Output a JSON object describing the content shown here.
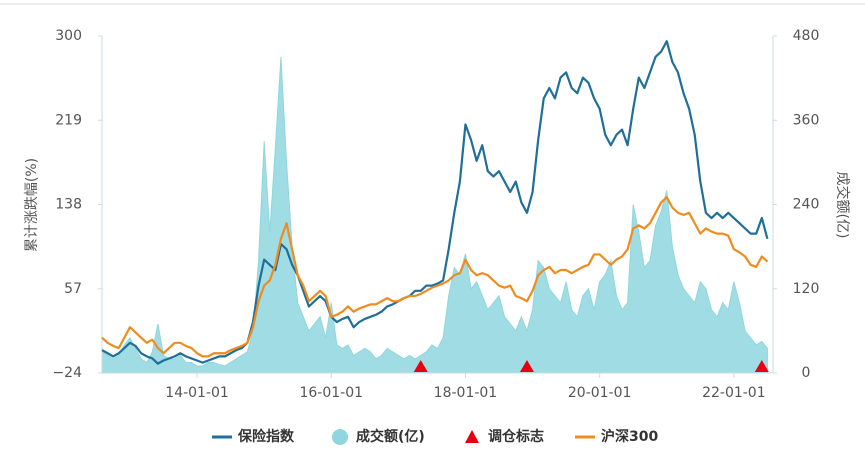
{
  "chart_data": {
    "type": "line",
    "y_label": "累计涨跌幅(%)",
    "y2_label": "成交额(亿)",
    "ylim": [
      -24,
      300
    ],
    "yticks": [
      {
        "value": -24,
        "label": "−24"
      },
      57,
      138,
      219,
      300
    ],
    "y2lim": [
      0,
      480
    ],
    "y2ticks": [
      0,
      120,
      240,
      360,
      480
    ],
    "xlim": [
      "12-08-01",
      "22-08-01"
    ],
    "xticks": [
      "14-01-01",
      "16-01-01",
      "18-01-01",
      "20-01-01",
      "22-01-01"
    ],
    "x": [
      "12-08-01",
      "12-09-01",
      "12-10-01",
      "12-11-01",
      "12-12-01",
      "13-01-01",
      "13-02-01",
      "13-03-01",
      "13-04-01",
      "13-05-01",
      "13-06-01",
      "13-07-01",
      "13-08-01",
      "13-09-01",
      "13-10-01",
      "13-11-01",
      "13-12-01",
      "14-01-01",
      "14-02-01",
      "14-03-01",
      "14-04-01",
      "14-05-01",
      "14-06-01",
      "14-07-01",
      "14-08-01",
      "14-09-01",
      "14-10-01",
      "14-11-01",
      "14-12-01",
      "15-01-01",
      "15-02-01",
      "15-03-01",
      "15-04-01",
      "15-05-01",
      "15-06-01",
      "15-07-01",
      "15-08-01",
      "15-09-01",
      "15-10-01",
      "15-11-01",
      "15-12-01",
      "16-01-01",
      "16-02-01",
      "16-03-01",
      "16-04-01",
      "16-05-01",
      "16-06-01",
      "16-07-01",
      "16-08-01",
      "16-09-01",
      "16-10-01",
      "16-11-01",
      "16-12-01",
      "17-01-01",
      "17-02-01",
      "17-03-01",
      "17-04-01",
      "17-05-01",
      "17-06-01",
      "17-07-01",
      "17-08-01",
      "17-09-01",
      "17-10-01",
      "17-11-01",
      "17-12-01",
      "18-01-01",
      "18-02-01",
      "18-03-01",
      "18-04-01",
      "18-05-01",
      "18-06-01",
      "18-07-01",
      "18-08-01",
      "18-09-01",
      "18-10-01",
      "18-11-01",
      "18-12-01",
      "19-01-01",
      "19-02-01",
      "19-03-01",
      "19-04-01",
      "19-05-01",
      "19-06-01",
      "19-07-01",
      "19-08-01",
      "19-09-01",
      "19-10-01",
      "19-11-01",
      "19-12-01",
      "20-01-01",
      "20-02-01",
      "20-03-01",
      "20-04-01",
      "20-05-01",
      "20-06-01",
      "20-07-01",
      "20-08-01",
      "20-09-01",
      "20-10-01",
      "20-11-01",
      "20-12-01",
      "21-01-01",
      "21-02-01",
      "21-03-01",
      "21-04-01",
      "21-05-01",
      "21-06-01",
      "21-07-01",
      "21-08-01",
      "21-09-01",
      "21-10-01",
      "21-11-01",
      "21-12-01",
      "22-01-01",
      "22-02-01",
      "22-03-01",
      "22-04-01",
      "22-05-01",
      "22-06-01",
      "22-07-01"
    ],
    "series": [
      {
        "name": "保险指数",
        "type": "line",
        "color": "#1f6f99",
        "values": [
          -2,
          -5,
          -8,
          -5,
          0,
          5,
          2,
          -5,
          -8,
          -10,
          -15,
          -12,
          -10,
          -8,
          -5,
          -8,
          -10,
          -12,
          -14,
          -12,
          -10,
          -8,
          -8,
          -5,
          -2,
          0,
          5,
          25,
          60,
          85,
          80,
          75,
          100,
          95,
          80,
          70,
          55,
          40,
          45,
          50,
          45,
          30,
          25,
          28,
          30,
          20,
          25,
          28,
          30,
          32,
          35,
          40,
          42,
          45,
          48,
          50,
          55,
          55,
          60,
          60,
          62,
          65,
          95,
          130,
          160,
          215,
          200,
          180,
          195,
          170,
          165,
          170,
          160,
          150,
          160,
          140,
          130,
          150,
          200,
          240,
          250,
          240,
          260,
          265,
          250,
          245,
          260,
          255,
          240,
          230,
          205,
          195,
          205,
          210,
          195,
          230,
          260,
          250,
          265,
          280,
          285,
          295,
          275,
          265,
          245,
          230,
          205,
          160,
          130,
          125,
          130,
          125,
          130,
          125,
          120,
          115,
          110,
          110,
          125,
          105
        ]
      },
      {
        "name": "成交额(亿)",
        "type": "area",
        "axis": "y2",
        "color": "#8fd6de",
        "values": [
          30,
          25,
          20,
          25,
          40,
          50,
          35,
          20,
          15,
          30,
          70,
          25,
          20,
          20,
          25,
          15,
          15,
          10,
          10,
          15,
          15,
          12,
          10,
          15,
          20,
          25,
          30,
          60,
          160,
          330,
          200,
          320,
          450,
          300,
          180,
          100,
          80,
          60,
          70,
          80,
          50,
          100,
          40,
          35,
          40,
          25,
          30,
          35,
          30,
          20,
          25,
          35,
          30,
          25,
          20,
          25,
          20,
          25,
          30,
          40,
          35,
          50,
          110,
          150,
          140,
          170,
          120,
          130,
          110,
          90,
          100,
          110,
          80,
          70,
          60,
          80,
          60,
          90,
          160,
          150,
          120,
          110,
          100,
          130,
          90,
          80,
          110,
          120,
          90,
          130,
          140,
          160,
          110,
          90,
          100,
          240,
          200,
          150,
          160,
          210,
          230,
          260,
          180,
          140,
          120,
          110,
          100,
          130,
          120,
          90,
          80,
          100,
          90,
          130,
          100,
          60,
          50,
          40,
          45,
          35
        ]
      },
      {
        "name": "调仓标志",
        "type": "marker",
        "color": "#e60012",
        "x": [
          "17-05-01",
          "18-12-01",
          "22-06-01"
        ]
      },
      {
        "name": "沪深300",
        "type": "line",
        "color": "#f08c1e",
        "values": [
          10,
          5,
          2,
          0,
          10,
          20,
          15,
          10,
          5,
          8,
          0,
          -5,
          0,
          5,
          5,
          2,
          0,
          -5,
          -8,
          -8,
          -5,
          -5,
          -5,
          -2,
          0,
          2,
          5,
          20,
          45,
          60,
          65,
          80,
          105,
          120,
          95,
          70,
          60,
          45,
          50,
          55,
          50,
          30,
          32,
          35,
          40,
          35,
          38,
          40,
          42,
          42,
          45,
          48,
          45,
          45,
          48,
          50,
          50,
          52,
          55,
          58,
          60,
          62,
          65,
          70,
          72,
          85,
          75,
          70,
          72,
          70,
          65,
          60,
          58,
          60,
          50,
          48,
          45,
          55,
          70,
          75,
          78,
          72,
          75,
          75,
          72,
          75,
          78,
          80,
          90,
          90,
          85,
          80,
          85,
          88,
          95,
          115,
          118,
          115,
          120,
          130,
          140,
          145,
          135,
          130,
          128,
          130,
          120,
          110,
          115,
          112,
          110,
          110,
          108,
          95,
          92,
          88,
          80,
          78,
          88,
          83
        ]
      }
    ]
  }
}
